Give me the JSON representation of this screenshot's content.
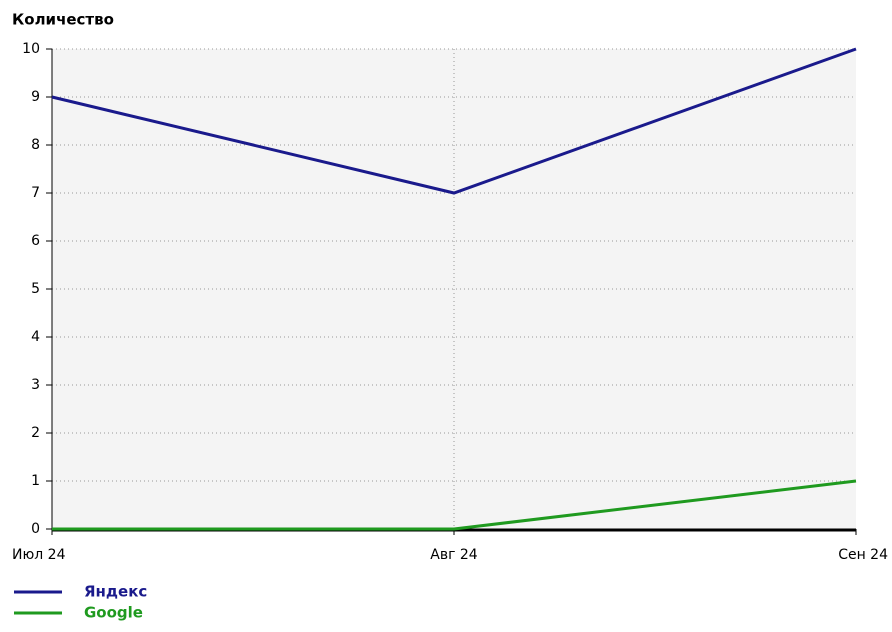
{
  "chart_data": {
    "type": "line",
    "title": "Количество",
    "categories": [
      "Июл 24",
      "Авг 24",
      "Сен 24"
    ],
    "series": [
      {
        "name": "Яндекс",
        "color": "#1a1a8c",
        "values": [
          9,
          7,
          10
        ]
      },
      {
        "name": "Google",
        "color": "#1f9a1f",
        "values": [
          0,
          0,
          1
        ]
      }
    ],
    "ylim": [
      0,
      10
    ],
    "yticks": [
      0,
      1,
      2,
      3,
      4,
      5,
      6,
      7,
      8,
      9,
      10
    ],
    "grid": true
  }
}
